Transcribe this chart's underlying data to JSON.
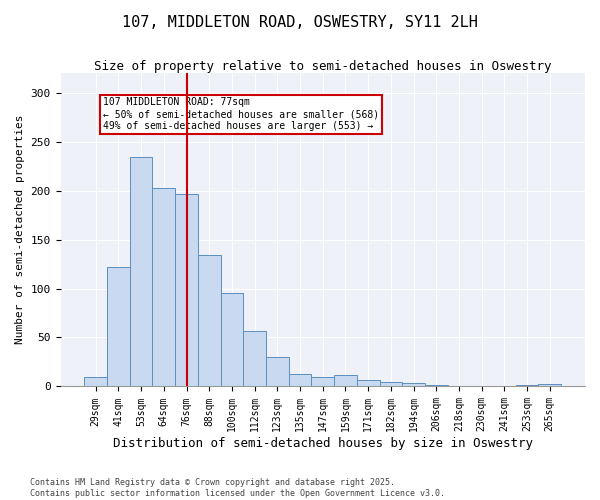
{
  "title": "107, MIDDLETON ROAD, OSWESTRY, SY11 2LH",
  "subtitle": "Size of property relative to semi-detached houses in Oswestry",
  "xlabel": "Distribution of semi-detached houses by size in Oswestry",
  "ylabel": "Number of semi-detached properties",
  "categories": [
    "29sqm",
    "41sqm",
    "53sqm",
    "64sqm",
    "76sqm",
    "88sqm",
    "100sqm",
    "112sqm",
    "123sqm",
    "135sqm",
    "147sqm",
    "159sqm",
    "171sqm",
    "182sqm",
    "194sqm",
    "206sqm",
    "218sqm",
    "230sqm",
    "241sqm",
    "253sqm",
    "265sqm"
  ],
  "values": [
    10,
    122,
    234,
    203,
    196,
    134,
    95,
    57,
    30,
    13,
    10,
    12,
    7,
    5,
    4,
    1,
    0,
    0,
    0,
    1,
    3
  ],
  "bar_color": "#c8d9f0",
  "bar_edge_color": "#5a8fc0",
  "highlight_index": 4,
  "highlight_line_color": "#cc0000",
  "annotation_text": "107 MIDDLETON ROAD: 77sqm\n← 50% of semi-detached houses are smaller (568)\n49% of semi-detached houses are larger (553) →",
  "annotation_box_color": "#cc0000",
  "ylim": [
    0,
    320
  ],
  "yticks": [
    0,
    50,
    100,
    150,
    200,
    250,
    300
  ],
  "background_color": "#eef2f8",
  "footer_text": "Contains HM Land Registry data © Crown copyright and database right 2025.\nContains public sector information licensed under the Open Government Licence v3.0.",
  "title_fontsize": 11,
  "subtitle_fontsize": 9,
  "xlabel_fontsize": 9,
  "ylabel_fontsize": 8
}
